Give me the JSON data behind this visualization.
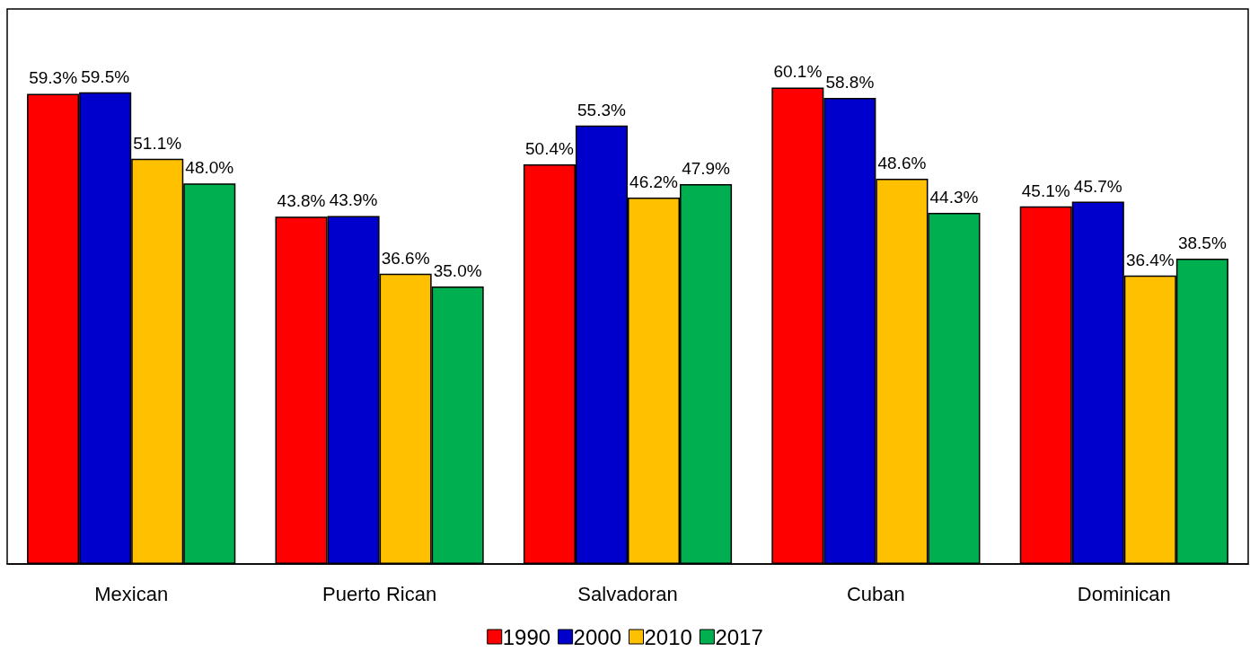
{
  "chart_data": {
    "type": "bar",
    "categories": [
      "Mexican",
      "Puerto Rican",
      "Salvadoran",
      "Cuban",
      "Dominican"
    ],
    "ylim": [
      0,
      70
    ],
    "legend": "bottom",
    "grid": false,
    "tick_labels": "x",
    "series": [
      {
        "name": "1990",
        "color": "#ff0000",
        "values": [
          59.3,
          43.8,
          50.4,
          60.1,
          45.1
        ],
        "value_labels": [
          "59.3%",
          "43.8%",
          "50.4%",
          "60.1%",
          "45.1%"
        ]
      },
      {
        "name": "2000",
        "color": "#0000cc",
        "values": [
          59.5,
          43.9,
          55.3,
          58.8,
          45.7
        ],
        "value_labels": [
          "59.5%",
          "43.9%",
          "55.3%",
          "58.8%",
          "45.7%"
        ]
      },
      {
        "name": "2010",
        "color": "#ffc000",
        "values": [
          51.1,
          36.6,
          46.2,
          48.6,
          36.4
        ],
        "value_labels": [
          "51.1%",
          "36.6%",
          "46.2%",
          "48.6%",
          "36.4%"
        ]
      },
      {
        "name": "2017",
        "color": "#00b050",
        "values": [
          48.0,
          35.0,
          47.9,
          44.3,
          38.5
        ],
        "value_labels": [
          "48.0%",
          "35.0%",
          "47.9%",
          "44.3%",
          "38.5%"
        ]
      }
    ]
  }
}
